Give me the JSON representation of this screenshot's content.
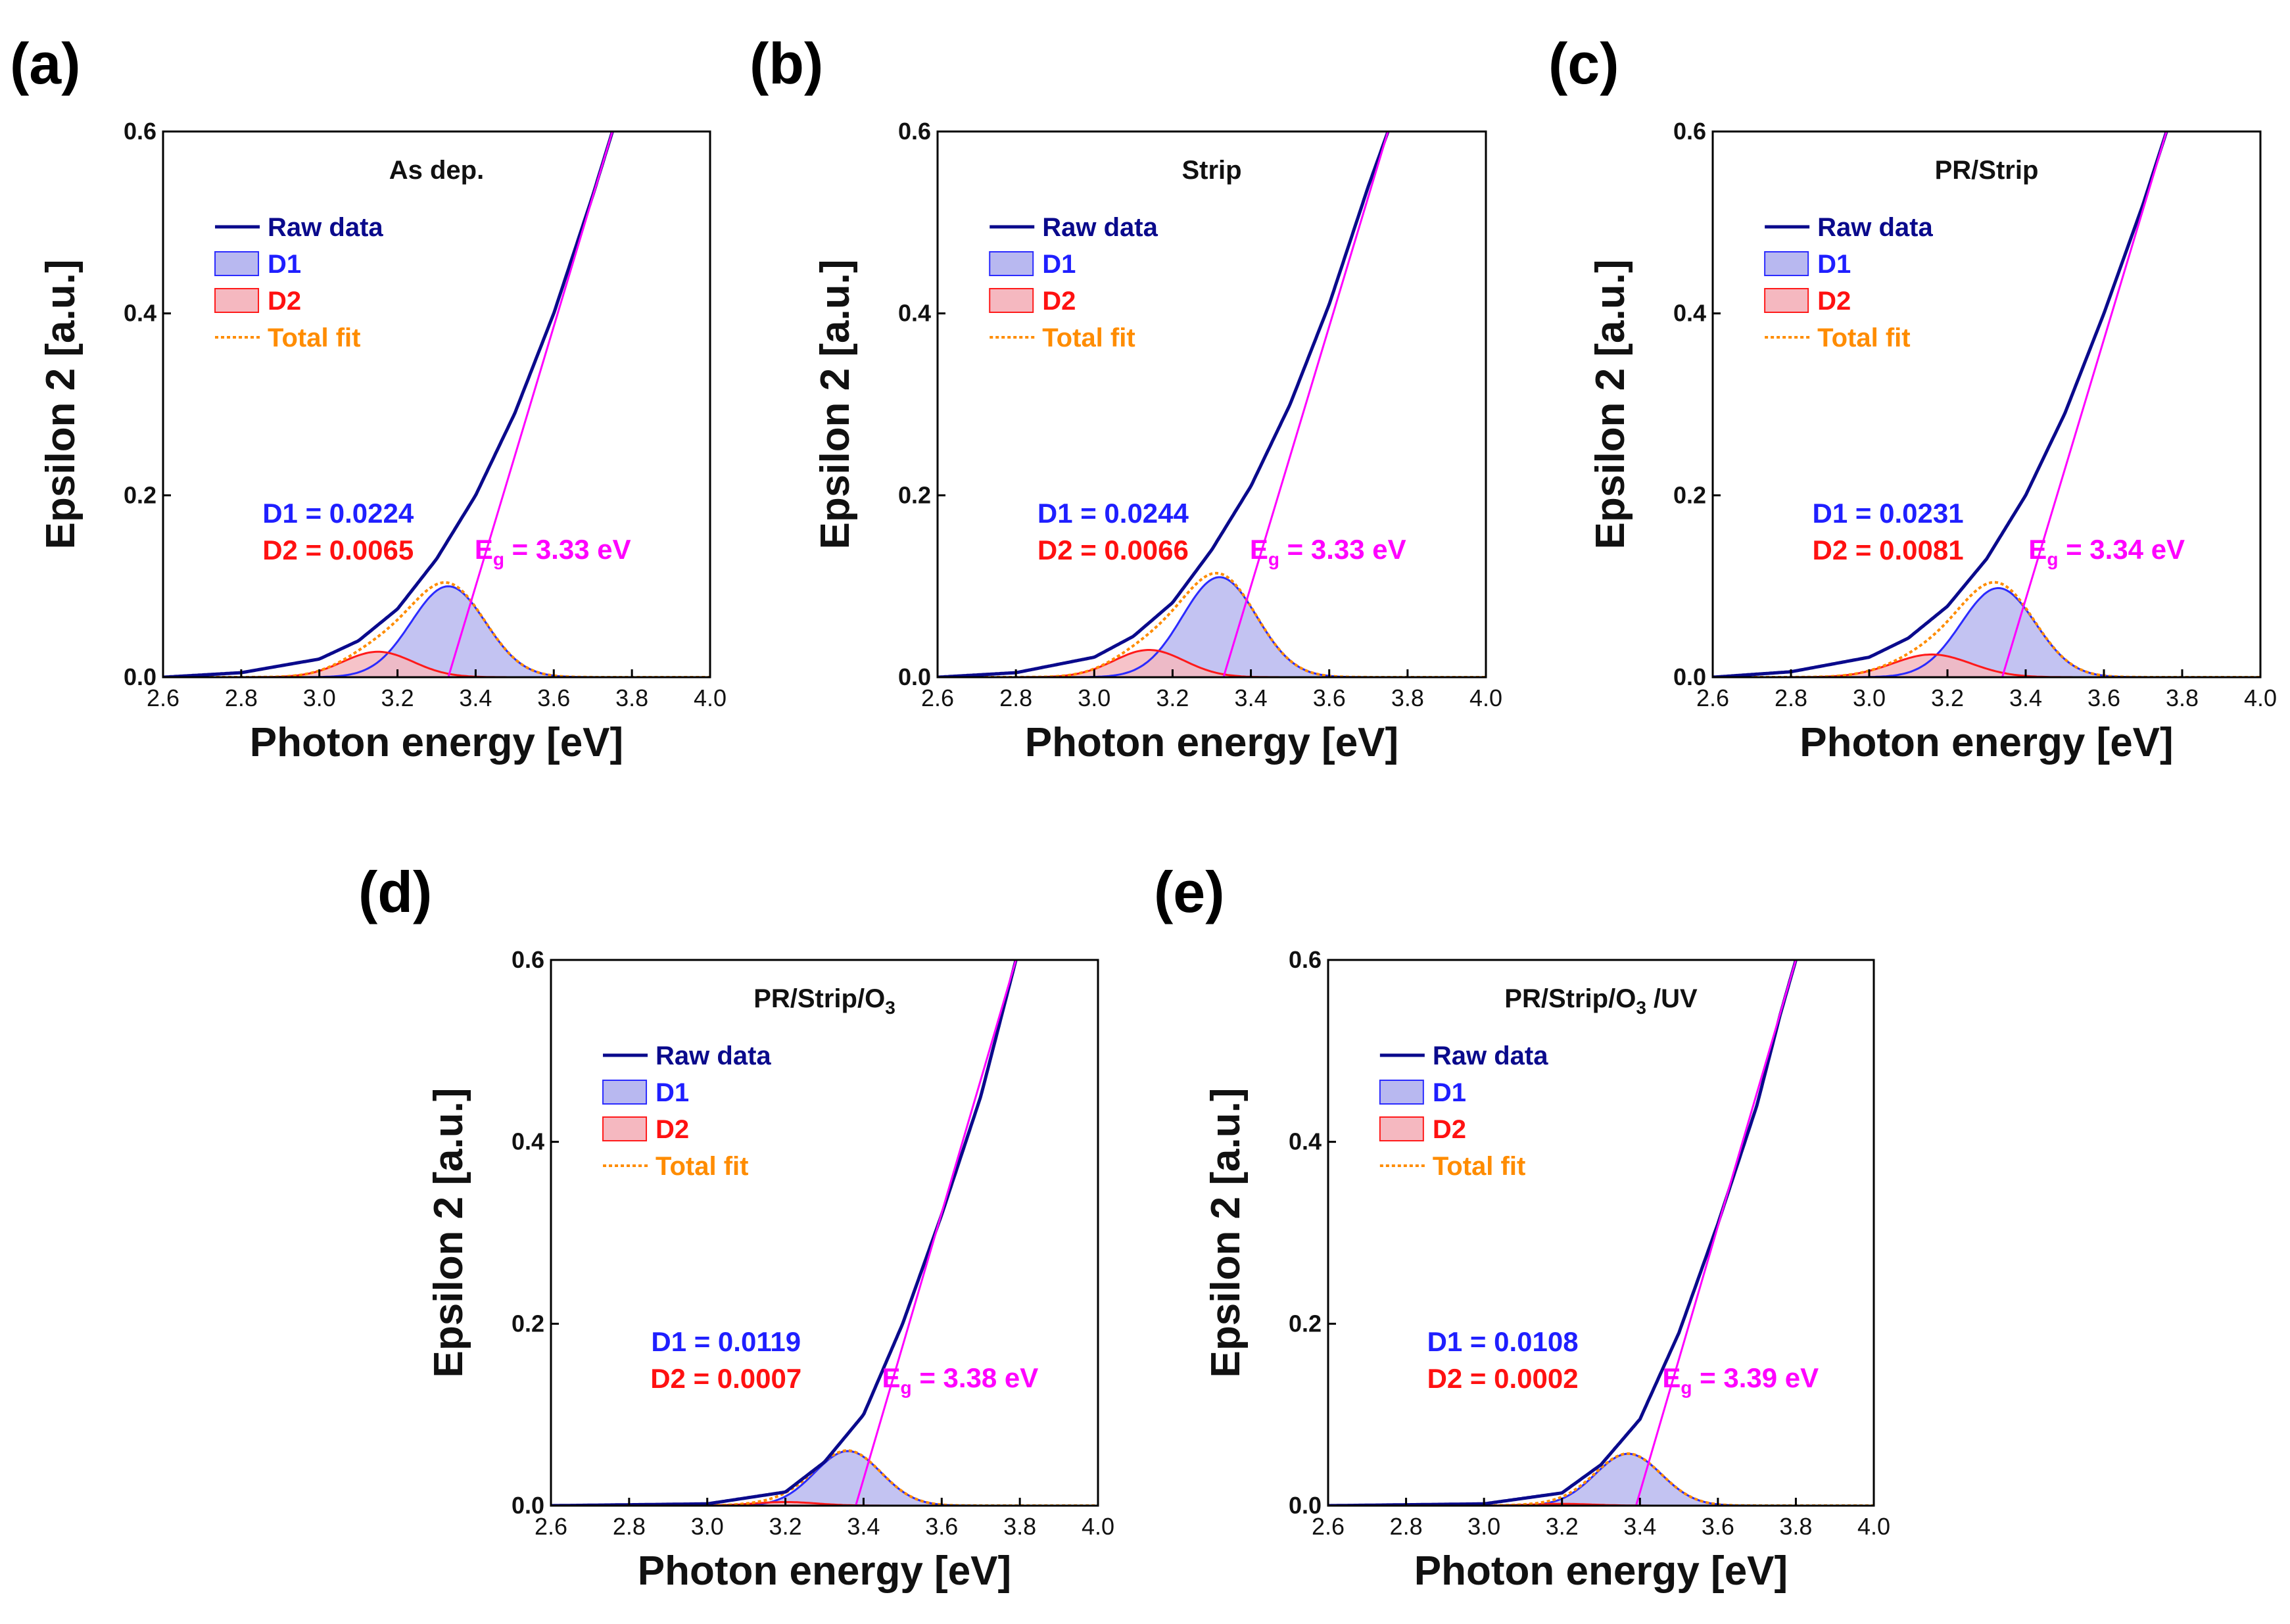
{
  "figure": {
    "colors": {
      "raw": "#0a0a8c",
      "d1_line": "#2b2bff",
      "d1_fill": "#b8b8f0",
      "d2_line": "#ff1a1a",
      "d2_fill": "#f5b8c0",
      "total": "#ff8c00",
      "eg": "#ff00ff",
      "d1_text": "#1f1fff",
      "d2_text": "#ff1111",
      "legend_total_text": "#ff8c00"
    }
  },
  "chart_data": [
    {
      "type": "area",
      "panel_label": "(a)",
      "title": "As dep.",
      "xlabel": "Photon energy [eV]",
      "ylabel": "Epsilon 2 [a.u.]",
      "xlim": [
        2.6,
        4.0
      ],
      "ylim": [
        0.0,
        0.6
      ],
      "xticks": [
        "2.6",
        "2.8",
        "3.0",
        "3.2",
        "3.4",
        "3.6",
        "3.8",
        "4.0"
      ],
      "yticks": [
        "0.0",
        "0.2",
        "0.4",
        "0.6"
      ],
      "legend": [
        "Raw data",
        "D1",
        "D2",
        "Total fit"
      ],
      "d1_label": "D1 = 0.0224",
      "d2_label": "D2 = 0.0065",
      "eg_prefix": "E",
      "eg_sub": "g",
      "eg_value": " = 3.33 eV",
      "eg": 3.33,
      "raw": {
        "x": [
          2.6,
          2.8,
          3.0,
          3.1,
          3.2,
          3.3,
          3.4,
          3.5,
          3.6,
          3.7,
          3.75
        ],
        "y": [
          0.0,
          0.005,
          0.02,
          0.04,
          0.075,
          0.13,
          0.2,
          0.29,
          0.4,
          0.53,
          0.6
        ]
      },
      "d1": {
        "center": 3.33,
        "amp": 0.1,
        "width": 0.095
      },
      "d2": {
        "center": 3.15,
        "amp": 0.028,
        "width": 0.09
      }
    },
    {
      "type": "area",
      "panel_label": "(b)",
      "title": "Strip",
      "xlabel": "Photon energy [eV]",
      "ylabel": "Epsilon 2 [a.u.]",
      "xlim": [
        2.6,
        4.0
      ],
      "ylim": [
        0.0,
        0.6
      ],
      "xticks": [
        "2.6",
        "2.8",
        "3.0",
        "3.2",
        "3.4",
        "3.6",
        "3.8",
        "4.0"
      ],
      "yticks": [
        "0.0",
        "0.2",
        "0.4",
        "0.6"
      ],
      "legend": [
        "Raw data",
        "D1",
        "D2",
        "Total fit"
      ],
      "d1_label": "D1 = 0.0244",
      "d2_label": "D2 = 0.0066",
      "eg_prefix": "E",
      "eg_sub": "g",
      "eg_value": " = 3.33 eV",
      "eg": 3.33,
      "raw": {
        "x": [
          2.6,
          2.8,
          3.0,
          3.1,
          3.2,
          3.3,
          3.4,
          3.5,
          3.6,
          3.7,
          3.75
        ],
        "y": [
          0.0,
          0.005,
          0.022,
          0.045,
          0.082,
          0.14,
          0.21,
          0.3,
          0.41,
          0.54,
          0.6
        ]
      },
      "d1": {
        "center": 3.32,
        "amp": 0.11,
        "width": 0.095
      },
      "d2": {
        "center": 3.14,
        "amp": 0.03,
        "width": 0.09
      }
    },
    {
      "type": "area",
      "panel_label": "(c)",
      "title": "PR/Strip",
      "xlabel": "Photon energy [eV]",
      "ylabel": "Epsilon 2 [a.u.]",
      "xlim": [
        2.6,
        4.0
      ],
      "ylim": [
        0.0,
        0.6
      ],
      "xticks": [
        "2.6",
        "2.8",
        "3.0",
        "3.2",
        "3.4",
        "3.6",
        "3.8",
        "4.0"
      ],
      "yticks": [
        "0.0",
        "0.2",
        "0.4",
        "0.6"
      ],
      "legend": [
        "Raw data",
        "D1",
        "D2",
        "Total fit"
      ],
      "d1_label": "D1 = 0.0231",
      "d2_label": "D2 = 0.0081",
      "eg_prefix": "E",
      "eg_sub": "g",
      "eg_value": " = 3.34 eV",
      "eg": 3.34,
      "raw": {
        "x": [
          2.6,
          2.8,
          3.0,
          3.1,
          3.2,
          3.3,
          3.4,
          3.5,
          3.6,
          3.7,
          3.76
        ],
        "y": [
          0.0,
          0.006,
          0.022,
          0.043,
          0.078,
          0.13,
          0.2,
          0.29,
          0.4,
          0.52,
          0.6
        ]
      },
      "d1": {
        "center": 3.33,
        "amp": 0.098,
        "width": 0.095
      },
      "d2": {
        "center": 3.16,
        "amp": 0.025,
        "width": 0.1
      }
    },
    {
      "type": "area",
      "panel_label": "(d)",
      "title_main": "PR/Strip/O",
      "title_sub": "3",
      "title_after": "",
      "xlabel": "Photon energy [eV]",
      "ylabel": "Epsilon 2 [a.u.]",
      "xlim": [
        2.6,
        4.0
      ],
      "ylim": [
        0.0,
        0.6
      ],
      "xticks": [
        "2.6",
        "2.8",
        "3.0",
        "3.2",
        "3.4",
        "3.6",
        "3.8",
        "4.0"
      ],
      "yticks": [
        "0.0",
        "0.2",
        "0.4",
        "0.6"
      ],
      "legend": [
        "Raw data",
        "D1",
        "D2",
        "Total fit"
      ],
      "d1_label": "D1 = 0.0119",
      "d2_label": "D2 = 0.0007",
      "eg_prefix": "E",
      "eg_sub": "g",
      "eg_value": " = 3.38 eV",
      "eg": 3.38,
      "raw": {
        "x": [
          2.6,
          3.0,
          3.2,
          3.3,
          3.4,
          3.5,
          3.6,
          3.7,
          3.76,
          3.79
        ],
        "y": [
          0.0,
          0.002,
          0.015,
          0.048,
          0.1,
          0.2,
          0.32,
          0.45,
          0.55,
          0.6
        ]
      },
      "d1": {
        "center": 3.36,
        "amp": 0.06,
        "width": 0.085
      },
      "d2": {
        "center": 3.2,
        "amp": 0.004,
        "width": 0.08
      }
    },
    {
      "type": "area",
      "panel_label": "(e)",
      "title_main": "PR/Strip/O",
      "title_sub": "3",
      "title_after": " /UV",
      "xlabel": "Photon energy [eV]",
      "ylabel": "Epsilon 2 [a.u.]",
      "xlim": [
        2.6,
        4.0
      ],
      "ylim": [
        0.0,
        0.6
      ],
      "xticks": [
        "2.6",
        "2.8",
        "3.0",
        "3.2",
        "3.4",
        "3.6",
        "3.8",
        "4.0"
      ],
      "yticks": [
        "0.0",
        "0.2",
        "0.4",
        "0.6"
      ],
      "legend": [
        "Raw data",
        "D1",
        "D2",
        "Total fit"
      ],
      "d1_label": "D1 = 0.0108",
      "d2_label": "D2 = 0.0002",
      "eg_prefix": "E",
      "eg_sub": "g",
      "eg_value": " = 3.39 eV",
      "eg": 3.39,
      "raw": {
        "x": [
          2.6,
          3.0,
          3.2,
          3.3,
          3.4,
          3.5,
          3.6,
          3.7,
          3.76,
          3.8
        ],
        "y": [
          0.0,
          0.002,
          0.014,
          0.045,
          0.095,
          0.19,
          0.31,
          0.44,
          0.54,
          0.6
        ]
      },
      "d1": {
        "center": 3.37,
        "amp": 0.057,
        "width": 0.085
      },
      "d2": {
        "center": 3.2,
        "amp": 0.002,
        "width": 0.08
      }
    }
  ]
}
